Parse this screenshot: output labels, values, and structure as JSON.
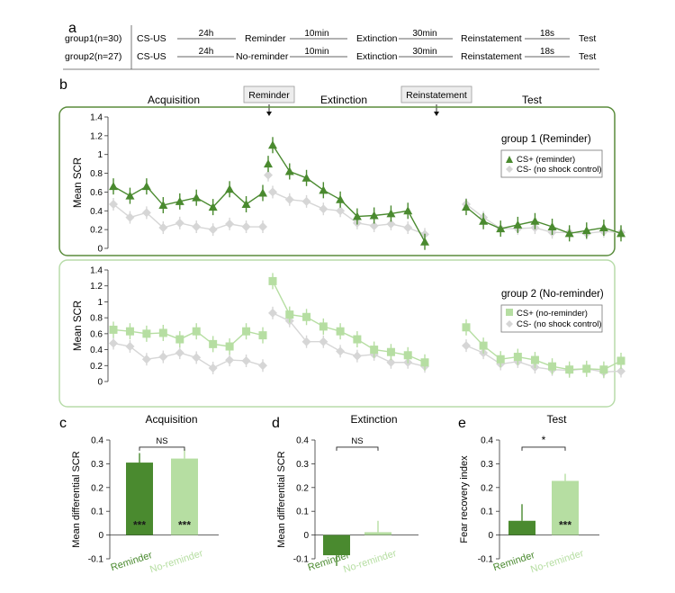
{
  "panel_labels": [
    "a",
    "b",
    "c",
    "d",
    "e"
  ],
  "protocol": {
    "rows": [
      {
        "group": "group1(n=30)",
        "steps": [
          "CS-US",
          "Reminder",
          "Extinction",
          "Reinstatement",
          "Test"
        ],
        "intervals": [
          "24h",
          "10min",
          "30min",
          "18s"
        ]
      },
      {
        "group": "group2(n=27)",
        "steps": [
          "CS-US",
          "No-reminder",
          "Extinction",
          "Reinstatement",
          "Test"
        ],
        "intervals": [
          "24h",
          "10min",
          "30min",
          "18s"
        ]
      }
    ]
  },
  "phase_titles": {
    "acquisition": "Acquisition",
    "extinction": "Extinction",
    "test": "Test"
  },
  "markers": {
    "reminder": "Reminder",
    "reinstatement": "Reinstatement"
  },
  "colors": {
    "dark_green": "#4a8a2f",
    "light_green": "#b6dea2",
    "gray": "#d6d6d6",
    "frame_dark": "#5a8c3c",
    "frame_light": "#b8dcaa"
  },
  "chart_data": [
    {
      "type": "line",
      "panel": "b-group1",
      "title": "group 1 (Reminder)",
      "ylabel": "Mean SCR",
      "ylim": [
        0,
        1.4
      ],
      "yticks": [
        "0",
        "0.2",
        "0.4",
        "0.6",
        "0.8",
        "1",
        "1.2",
        "1.4"
      ],
      "legend": [
        "CS+ (reminder)",
        "CS- (no shock control)"
      ],
      "legend_position": "right",
      "series": [
        {
          "name": "CS+ (reminder)",
          "marker": "triangle",
          "color": "#4a8a2f",
          "segments": [
            [
              0.66,
              0.56,
              0.66,
              0.46,
              0.5,
              0.54,
              0.44,
              0.63,
              0.47,
              0.59
            ],
            [
              0.9
            ],
            [
              1.1,
              0.82,
              0.75,
              0.62,
              0.52,
              0.34,
              0.35,
              0.37,
              0.4,
              0.07
            ],
            [
              0.44,
              0.29,
              0.21,
              0.25,
              0.29,
              0.23,
              0.16,
              0.19,
              0.22,
              0.16
            ]
          ]
        },
        {
          "name": "CS- (no shock control)",
          "marker": "diamond",
          "color": "#d6d6d6",
          "segments": [
            [
              0.47,
              0.33,
              0.38,
              0.22,
              0.27,
              0.23,
              0.2,
              0.26,
              0.23,
              0.23
            ],
            [
              0.78
            ],
            [
              0.6,
              0.52,
              0.5,
              0.42,
              0.4,
              0.27,
              0.24,
              0.26,
              0.22,
              0.15
            ],
            [
              0.47,
              0.33,
              0.21,
              0.21,
              0.22,
              0.17,
              0.17,
              0.16,
              0.18,
              0.17
            ]
          ]
        }
      ]
    },
    {
      "type": "line",
      "panel": "b-group2",
      "title": "group 2 (No-reminder)",
      "ylabel": "Mean SCR",
      "ylim": [
        0,
        1.4
      ],
      "yticks": [
        "0",
        "0.2",
        "0.4",
        "0.6",
        "0.8",
        "1",
        "1.2",
        "1.4"
      ],
      "legend": [
        "CS+ (no-reminder)",
        "CS- (no shock control)"
      ],
      "legend_position": "right",
      "series": [
        {
          "name": "CS+ (no-reminder)",
          "marker": "square",
          "color": "#b6dea2",
          "segments": [
            [
              0.65,
              0.63,
              0.6,
              0.61,
              0.53,
              0.63,
              0.47,
              0.44,
              0.63,
              0.58
            ],
            [],
            [
              1.26,
              0.84,
              0.81,
              0.69,
              0.63,
              0.53,
              0.4,
              0.37,
              0.33,
              0.24
            ],
            [
              0.68,
              0.45,
              0.28,
              0.31,
              0.27,
              0.19,
              0.15,
              0.16,
              0.15,
              0.26
            ]
          ]
        },
        {
          "name": "CS- (no shock control)",
          "marker": "diamond",
          "color": "#d6d6d6",
          "segments": [
            [
              0.48,
              0.44,
              0.28,
              0.31,
              0.36,
              0.3,
              0.17,
              0.27,
              0.26,
              0.2
            ],
            [],
            [
              0.86,
              0.76,
              0.5,
              0.5,
              0.38,
              0.32,
              0.34,
              0.24,
              0.24,
              0.19
            ],
            [
              0.45,
              0.36,
              0.22,
              0.25,
              0.18,
              0.15,
              0.14,
              0.16,
              0.12,
              0.13
            ]
          ]
        }
      ]
    },
    {
      "type": "bar",
      "panel": "c",
      "title": "Acquisition",
      "ylabel": "Mean differential SCR",
      "ylim": [
        -0.1,
        0.4
      ],
      "yticks": [
        "-0.1",
        "0",
        "0.1",
        "0.2",
        "0.3",
        "0.4"
      ],
      "categories": [
        "Reminder",
        "No-reminder"
      ],
      "values": [
        0.305,
        0.322
      ],
      "errors": [
        0.04,
        0.04
      ],
      "bar_labels": [
        "***",
        "***"
      ],
      "comparison": "NS"
    },
    {
      "type": "bar",
      "panel": "d",
      "title": "Extinction",
      "ylabel": "Mean differential SCR",
      "ylim": [
        -0.1,
        0.4
      ],
      "yticks": [
        "-0.1",
        "0",
        "0.1",
        "0.2",
        "0.3",
        "0.4"
      ],
      "categories": [
        "Reminder",
        "No-reminder"
      ],
      "values": [
        -0.085,
        0.012
      ],
      "errors": [
        0.045,
        0.048
      ],
      "bar_labels": [
        "",
        ""
      ],
      "comparison": "NS"
    },
    {
      "type": "bar",
      "panel": "e",
      "title": "Test",
      "ylabel": "Fear recovery index",
      "ylim": [
        -0.1,
        0.4
      ],
      "yticks": [
        "-0.1",
        "0",
        "0.1",
        "0.2",
        "0.3",
        "0.4"
      ],
      "categories": [
        "Reminder",
        "No-reminder"
      ],
      "values": [
        0.06,
        0.228
      ],
      "errors": [
        0.07,
        0.03
      ],
      "bar_labels": [
        "",
        "***"
      ],
      "comparison": "*"
    }
  ]
}
